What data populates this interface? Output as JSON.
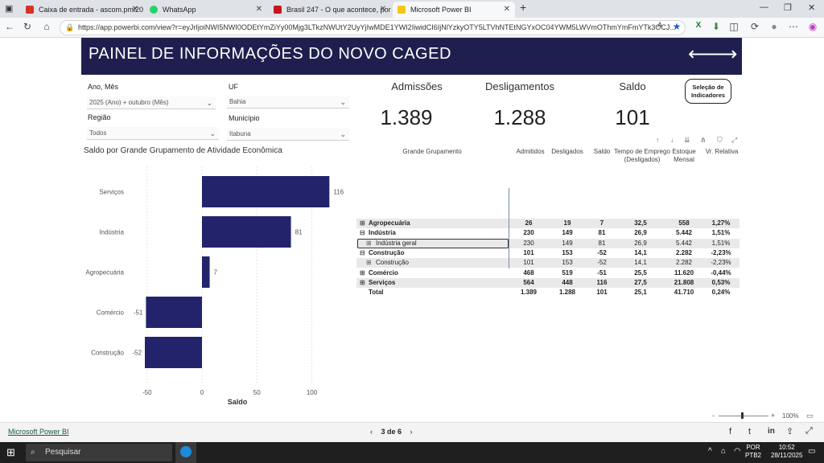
{
  "browser": {
    "tabs": [
      {
        "label": "Caixa de entrada - ascom.pmi202",
        "icon": "gmail-icon",
        "color": "#d93025"
      },
      {
        "label": "WhatsApp",
        "icon": "whatsapp-icon",
        "color": "#25d366"
      },
      {
        "label": "Brasil 247 - O que acontece, por q",
        "icon": "brasil247-icon",
        "color": "#c4161c"
      },
      {
        "label": "Microsoft Power BI",
        "icon": "powerbi-icon",
        "color": "#f2c811"
      }
    ],
    "url": "https://app.powerbi.com/view?r=eyJrIjoiNWI5NWI0ODEtYmZiYy00Mjg3LTkzNWUtY2UyYjIwMDE1YWI2IiwidCI6IjNlYzkyOTY5LTVhNTEtNGYxOC04YWM5LWVmOThmYmFmYTk3OCJ..."
  },
  "report": {
    "title": "PAINEL DE INFORMAÇÕES DO NOVO CAGED",
    "filters": {
      "ano_mes_label": "Ano, Mês",
      "ano_mes_value": "2025 (Ano) + outubro (Mês)",
      "uf_label": "UF",
      "uf_value": "Bahia",
      "regiao_label": "Região",
      "regiao_value": "Todos",
      "municipio_label": "Município",
      "municipio_value": "Itabuna"
    },
    "kpis": {
      "admissoes_label": "Admissões",
      "admissoes_value": "1.389",
      "desligamentos_label": "Desligamentos",
      "desligamentos_value": "1.288",
      "saldo_label": "Saldo",
      "saldo_value": "101"
    },
    "selection_button": "Seleção de Indicadores",
    "chart_title": "Saldo por Grande Grupamento de Atividade Econômica",
    "table": {
      "headers": [
        "Grande Grupamento",
        "Admitidos",
        "Desligados",
        "Saldo",
        "Tempo de Emprego (Desligados)",
        "Estoque Mensal",
        "Vr. Relativa"
      ],
      "rows": [
        {
          "exp": "⊞",
          "name": "Agropecuária",
          "level": 0,
          "bold": true,
          "vals": [
            "26",
            "19",
            "7",
            "32,5",
            "558",
            "1,27%"
          ]
        },
        {
          "exp": "⊟",
          "name": "Indústria",
          "level": 0,
          "bold": true,
          "vals": [
            "230",
            "149",
            "81",
            "26,9",
            "5.442",
            "1,51%"
          ]
        },
        {
          "exp": "⊞",
          "name": "Indústria geral",
          "level": 1,
          "bold": false,
          "vals": [
            "230",
            "149",
            "81",
            "26,9",
            "5.442",
            "1,51%"
          ]
        },
        {
          "exp": "⊟",
          "name": "Construção",
          "level": 0,
          "bold": true,
          "vals": [
            "101",
            "153",
            "-52",
            "14,1",
            "2.282",
            "-2,23%"
          ]
        },
        {
          "exp": "⊞",
          "name": "Construção",
          "level": 1,
          "bold": false,
          "vals": [
            "101",
            "153",
            "-52",
            "14,1",
            "2.282",
            "-2,23%"
          ]
        },
        {
          "exp": "⊞",
          "name": "Comércio",
          "level": 0,
          "bold": true,
          "vals": [
            "468",
            "519",
            "-51",
            "25,5",
            "11.620",
            "-0,44%"
          ]
        },
        {
          "exp": "⊞",
          "name": "Serviços",
          "level": 0,
          "bold": true,
          "vals": [
            "564",
            "448",
            "116",
            "27,5",
            "21.808",
            "0,53%"
          ]
        },
        {
          "exp": "",
          "name": "Total",
          "level": 0,
          "bold": true,
          "vals": [
            "1.389",
            "1.288",
            "101",
            "25,1",
            "41.710",
            "0,24%"
          ]
        }
      ]
    },
    "zoom": "100%"
  },
  "chart_data": {
    "type": "bar",
    "orientation": "horizontal",
    "title": "Saldo por Grande Grupamento de Atividade Econômica",
    "categories": [
      "Serviços",
      "Indústria",
      "Agropecuária",
      "Comércio",
      "Construção"
    ],
    "values": [
      116,
      81,
      7,
      -51,
      -52
    ],
    "xlabel": "Saldo",
    "xticks": [
      -50,
      0,
      50,
      100
    ],
    "xlim": [
      -52,
      120
    ],
    "bar_color": "#23236b",
    "grid": true
  },
  "footer": {
    "powerbi_link": "Microsoft Power BI",
    "pager": "3 de 6"
  },
  "taskbar": {
    "search": "Pesquisar",
    "lang": "POR",
    "layout": "PTB2",
    "time": "10:52",
    "date": "28/11/2025"
  }
}
